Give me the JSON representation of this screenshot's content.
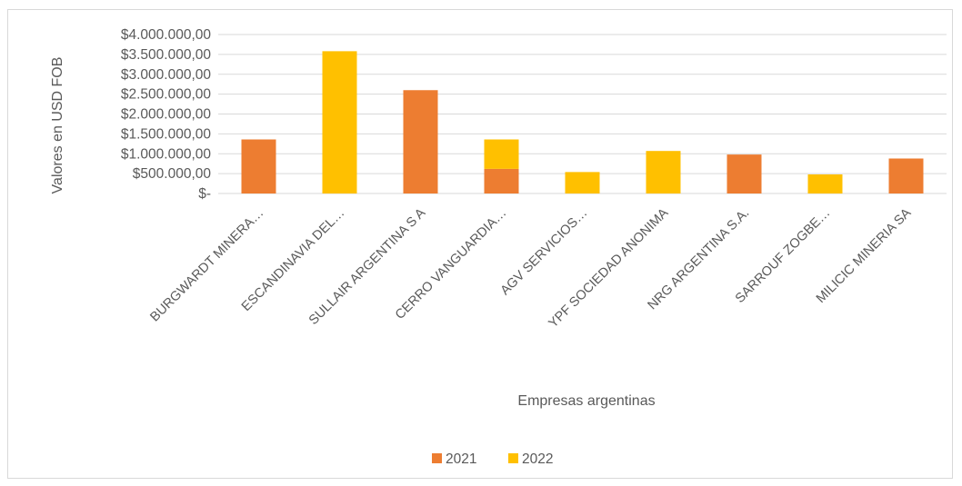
{
  "chart_data": {
    "type": "bar",
    "title": "",
    "xlabel": "Empresas argentinas",
    "ylabel": "Valores en USD FOB",
    "categories": [
      "BURGWARDT MINERA…",
      "ESCANDINAVIA DEL…",
      "SULLAIR ARGENTINA S A",
      "CERRO VANGUARDIA…",
      "AGV SERVICIOS…",
      "YPF SOCIEDAD ANONIMA",
      "NRG ARGENTINA S.A.",
      "SARROUF ZOGBE…",
      "MILICIC MINERIA SA"
    ],
    "series": [
      {
        "name": "2021",
        "color": "#ED7D31",
        "values": [
          1360000,
          0,
          2600000,
          620000,
          0,
          0,
          980000,
          0,
          880000
        ]
      },
      {
        "name": "2022",
        "color": "#FFC000",
        "values": [
          0,
          3580000,
          0,
          740000,
          540000,
          1070000,
          0,
          480000,
          0
        ]
      }
    ],
    "stacked": true,
    "ylim": [
      0,
      4000000
    ],
    "yticks": [
      0,
      500000,
      1000000,
      1500000,
      2000000,
      2500000,
      3000000,
      3500000,
      4000000
    ],
    "ytick_labels": [
      "$-",
      "$500.000,00",
      "$1.000.000,00",
      "$1.500.000,00",
      "$2.000.000,00",
      "$2.500.000,00",
      "$3.000.000,00",
      "$3.500.000,00",
      "$4.000.000,00"
    ],
    "grid": true,
    "legend_position": "bottom"
  }
}
